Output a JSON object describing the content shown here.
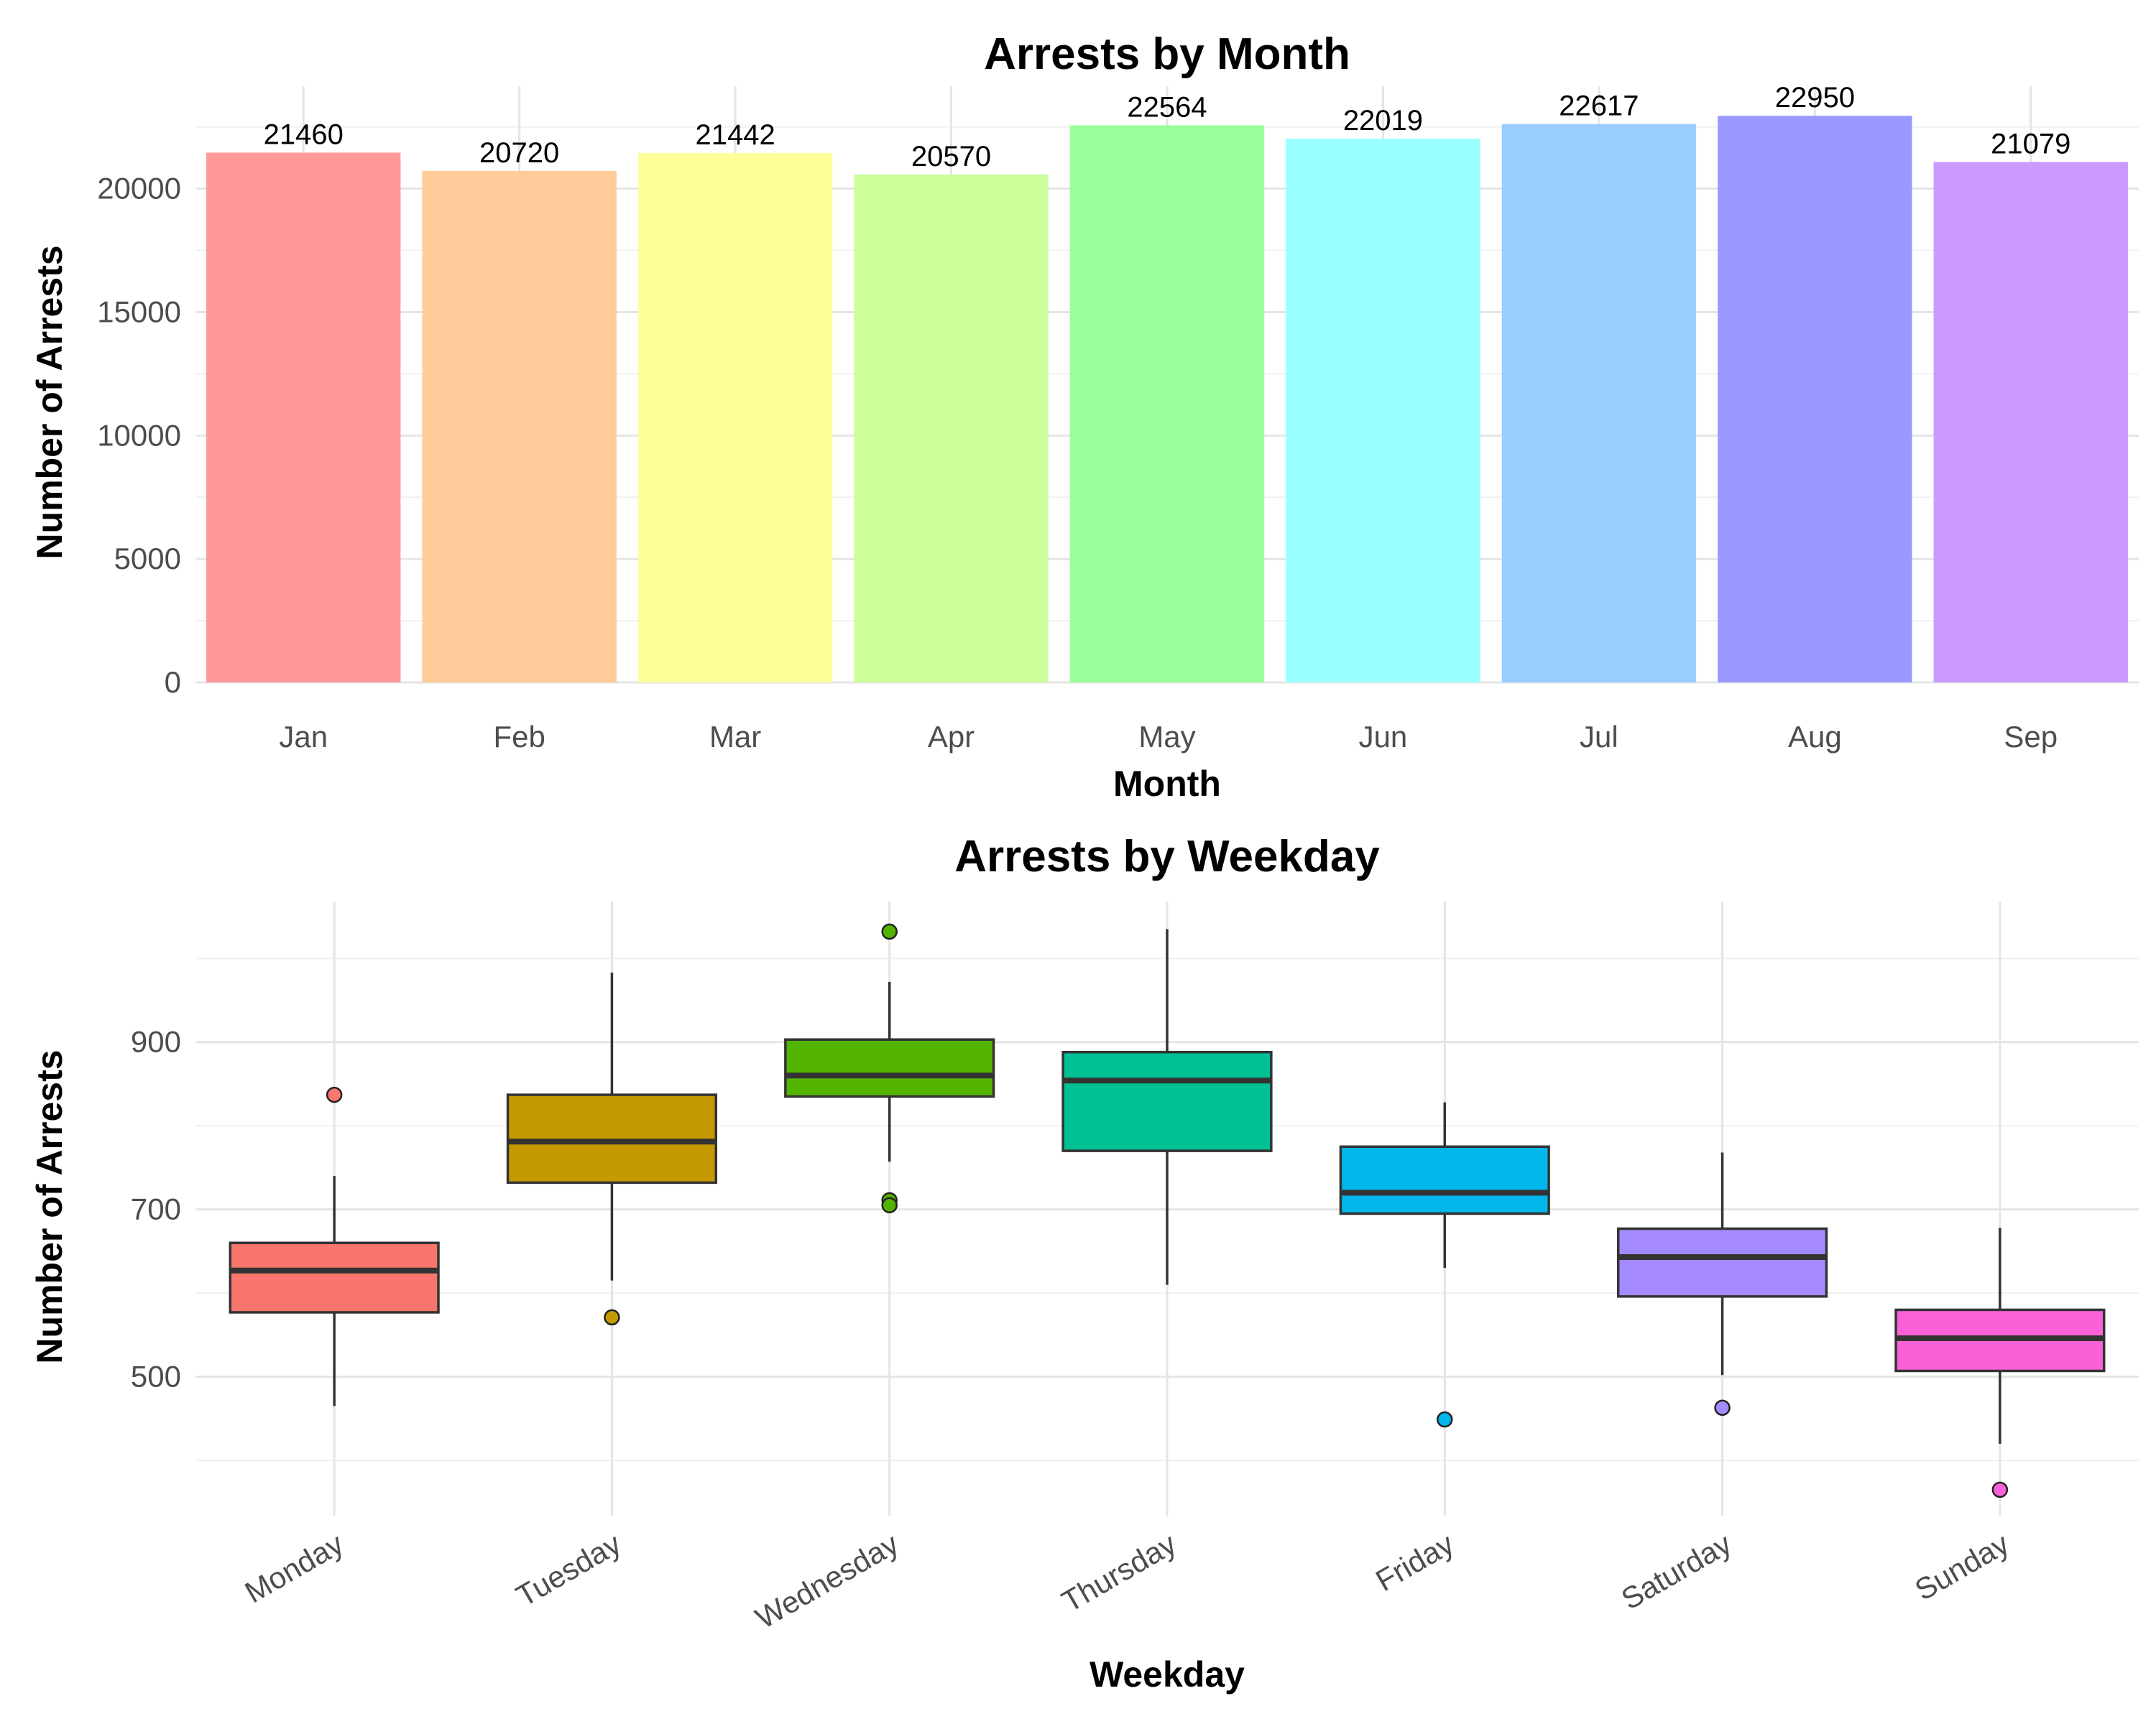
{
  "chart_data": [
    {
      "type": "bar",
      "title": "Arrests by Month",
      "xlabel": "Month",
      "ylabel": "Number of Arrests",
      "categories": [
        "Jan",
        "Feb",
        "Mar",
        "Apr",
        "May",
        "Jun",
        "Jul",
        "Aug",
        "Sep"
      ],
      "values": [
        21460,
        20720,
        21442,
        20570,
        22564,
        22019,
        22617,
        22950,
        21079
      ],
      "colors": [
        "#ff9999",
        "#ffcc99",
        "#ffff99",
        "#ccff99",
        "#99ff99",
        "#99ffff",
        "#99ccff",
        "#9999ff",
        "#cc99ff"
      ],
      "ylim": [
        0,
        24150
      ],
      "yticks": [
        0,
        5000,
        10000,
        15000,
        20000
      ],
      "grid": true,
      "legend": "none"
    },
    {
      "type": "box",
      "title": "Arrests by Weekday",
      "xlabel": "Weekday",
      "ylabel": "Number of Arrests",
      "categories": [
        "Monday",
        "Tuesday",
        "Wednesday",
        "Thursday",
        "Friday",
        "Saturday",
        "Sunday"
      ],
      "colors": [
        "#f8766d",
        "#c49a00",
        "#53b400",
        "#00c094",
        "#00b6eb",
        "#a58aff",
        "#fb61d7"
      ],
      "boxes": [
        {
          "name": "Monday",
          "whisker_low": 465,
          "q1": 577,
          "median": 627,
          "q3": 660,
          "whisker_high": 740,
          "outliers": [
            837
          ]
        },
        {
          "name": "Tuesday",
          "whisker_low": 615,
          "q1": 732,
          "median": 781,
          "q3": 837,
          "whisker_high": 983,
          "outliers": [
            571
          ]
        },
        {
          "name": "Wednesday",
          "whisker_low": 757,
          "q1": 835,
          "median": 860,
          "q3": 903,
          "whisker_high": 972,
          "outliers": [
            1032,
            711,
            705
          ]
        },
        {
          "name": "Thursday",
          "whisker_low": 610,
          "q1": 770,
          "median": 854,
          "q3": 888,
          "whisker_high": 1035,
          "outliers": []
        },
        {
          "name": "Friday",
          "whisker_low": 630,
          "q1": 695,
          "median": 720,
          "q3": 775,
          "whisker_high": 828,
          "outliers": [
            449
          ]
        },
        {
          "name": "Saturday",
          "whisker_low": 502,
          "q1": 596,
          "median": 643,
          "q3": 677,
          "whisker_high": 768,
          "outliers": [
            463
          ]
        },
        {
          "name": "Sunday",
          "whisker_low": 420,
          "q1": 507,
          "median": 546,
          "q3": 580,
          "whisker_high": 678,
          "outliers": [
            365
          ]
        }
      ],
      "ylim": [
        334,
        1068
      ],
      "yticks": [
        500,
        700,
        900
      ],
      "grid": true,
      "legend": "none"
    }
  ]
}
